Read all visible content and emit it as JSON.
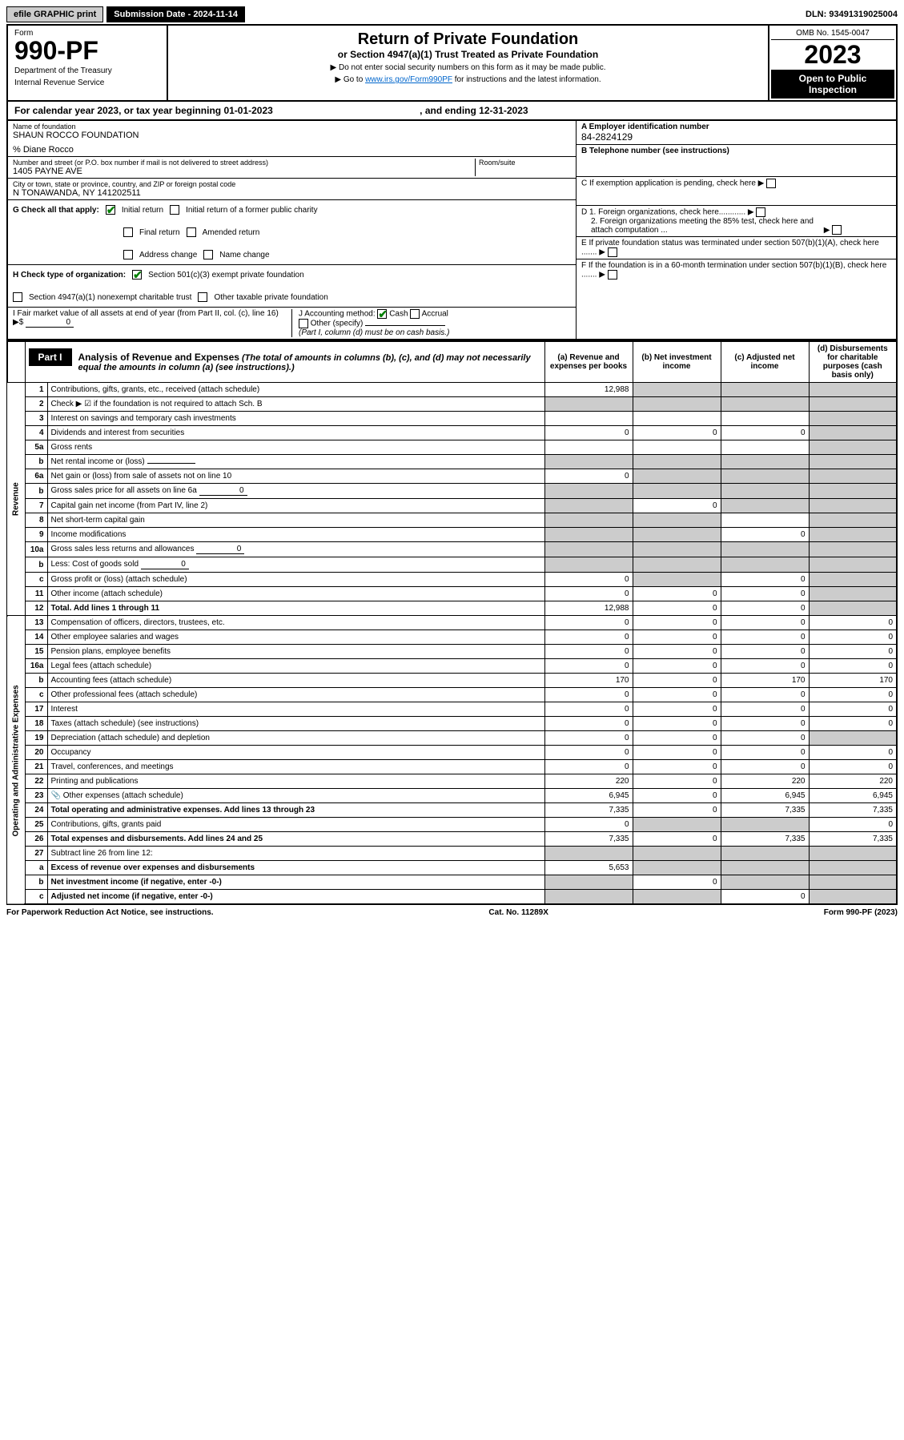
{
  "top": {
    "efile": "efile GRAPHIC print",
    "submission": "Submission Date - 2024-11-14",
    "dln": "DLN: 93491319025004"
  },
  "header": {
    "form_label": "Form",
    "form_no": "990-PF",
    "dept1": "Department of the Treasury",
    "dept2": "Internal Revenue Service",
    "title": "Return of Private Foundation",
    "subtitle": "or Section 4947(a)(1) Trust Treated as Private Foundation",
    "instr1": "▶ Do not enter social security numbers on this form as it may be made public.",
    "instr2_pre": "▶ Go to ",
    "instr2_link": "www.irs.gov/Form990PF",
    "instr2_post": " for instructions and the latest information.",
    "omb": "OMB No. 1545-0047",
    "year": "2023",
    "open": "Open to Public Inspection"
  },
  "cal": {
    "text": "For calendar year 2023, or tax year beginning 01-01-2023",
    "end": ", and ending 12-31-2023"
  },
  "org": {
    "name_lbl": "Name of foundation",
    "name": "SHAUN ROCCO FOUNDATION",
    "care": "% Diane Rocco",
    "addr_lbl": "Number and street (or P.O. box number if mail is not delivered to street address)",
    "addr": "1405 PAYNE AVE",
    "room_lbl": "Room/suite",
    "city_lbl": "City or town, state or province, country, and ZIP or foreign postal code",
    "city": "N TONAWANDA, NY  141202511",
    "ein_lbl": "A Employer identification number",
    "ein": "84-2824129",
    "tel_lbl": "B Telephone number (see instructions)",
    "c_lbl": "C If exemption application is pending, check here",
    "d1": "D 1. Foreign organizations, check here............",
    "d2": "2. Foreign organizations meeting the 85% test, check here and attach computation ...",
    "e_lbl": "E  If private foundation status was terminated under section 507(b)(1)(A), check here .......",
    "f_lbl": "F  If the foundation is in a 60-month termination under section 507(b)(1)(B), check here .......",
    "g_lbl": "G Check all that apply:",
    "g1": "Initial return",
    "g2": "Initial return of a former public charity",
    "g3": "Final return",
    "g4": "Amended return",
    "g5": "Address change",
    "g6": "Name change",
    "h_lbl": "H Check type of organization:",
    "h1": "Section 501(c)(3) exempt private foundation",
    "h2": "Section 4947(a)(1) nonexempt charitable trust",
    "h3": "Other taxable private foundation",
    "i_lbl": "I Fair market value of all assets at end of year (from Part II, col. (c), line 16) ▶$",
    "i_val": "0",
    "j_lbl": "J Accounting method:",
    "j1": "Cash",
    "j2": "Accrual",
    "j3": "Other (specify)",
    "j_note": "(Part I, column (d) must be on cash basis.)"
  },
  "part1": {
    "tab": "Part I",
    "title": "Analysis of Revenue and Expenses",
    "title_note": " (The total of amounts in columns (b), (c), and (d) may not necessarily equal the amounts in column (a) (see instructions).)",
    "col_a": "(a) Revenue and expenses per books",
    "col_b": "(b) Net investment income",
    "col_c": "(c) Adjusted net income",
    "col_d": "(d) Disbursements for charitable purposes (cash basis only)"
  },
  "side": {
    "revenue": "Revenue",
    "expenses": "Operating and Administrative Expenses"
  },
  "rows": [
    {
      "n": "1",
      "d": "Contributions, gifts, grants, etc., received (attach schedule)",
      "a": "12,988",
      "b": "",
      "c": "",
      "dcol": "",
      "grey": [
        "b",
        "c",
        "d"
      ]
    },
    {
      "n": "2",
      "d": "Check ▶ ☑ if the foundation is not required to attach Sch. B",
      "a": "",
      "b": "",
      "c": "",
      "dcol": "",
      "grey": [
        "a",
        "b",
        "c",
        "d"
      ],
      "checked": true
    },
    {
      "n": "3",
      "d": "Interest on savings and temporary cash investments",
      "a": "",
      "b": "",
      "c": "",
      "dcol": "",
      "grey": [
        "d"
      ]
    },
    {
      "n": "4",
      "d": "Dividends and interest from securities",
      "a": "0",
      "b": "0",
      "c": "0",
      "dcol": "",
      "grey": [
        "d"
      ]
    },
    {
      "n": "5a",
      "d": "Gross rents",
      "a": "",
      "b": "",
      "c": "",
      "dcol": "",
      "grey": [
        "d"
      ]
    },
    {
      "n": "b",
      "d": "Net rental income or (loss)",
      "a": "",
      "b": "",
      "c": "",
      "dcol": "",
      "grey": [
        "a",
        "b",
        "c",
        "d"
      ],
      "inline": ""
    },
    {
      "n": "6a",
      "d": "Net gain or (loss) from sale of assets not on line 10",
      "a": "0",
      "b": "",
      "c": "",
      "dcol": "",
      "grey": [
        "b",
        "c",
        "d"
      ]
    },
    {
      "n": "b",
      "d": "Gross sales price for all assets on line 6a",
      "a": "",
      "b": "",
      "c": "",
      "dcol": "",
      "grey": [
        "a",
        "b",
        "c",
        "d"
      ],
      "inline": "0"
    },
    {
      "n": "7",
      "d": "Capital gain net income (from Part IV, line 2)",
      "a": "",
      "b": "0",
      "c": "",
      "dcol": "",
      "grey": [
        "a",
        "c",
        "d"
      ]
    },
    {
      "n": "8",
      "d": "Net short-term capital gain",
      "a": "",
      "b": "",
      "c": "",
      "dcol": "",
      "grey": [
        "a",
        "b",
        "d"
      ]
    },
    {
      "n": "9",
      "d": "Income modifications",
      "a": "",
      "b": "",
      "c": "0",
      "dcol": "",
      "grey": [
        "a",
        "b",
        "d"
      ]
    },
    {
      "n": "10a",
      "d": "Gross sales less returns and allowances",
      "a": "",
      "b": "",
      "c": "",
      "dcol": "",
      "grey": [
        "a",
        "b",
        "c",
        "d"
      ],
      "inline": "0"
    },
    {
      "n": "b",
      "d": "Less: Cost of goods sold",
      "a": "",
      "b": "",
      "c": "",
      "dcol": "",
      "grey": [
        "a",
        "b",
        "c",
        "d"
      ],
      "inline": "0"
    },
    {
      "n": "c",
      "d": "Gross profit or (loss) (attach schedule)",
      "a": "0",
      "b": "",
      "c": "0",
      "dcol": "",
      "grey": [
        "b",
        "d"
      ]
    },
    {
      "n": "11",
      "d": "Other income (attach schedule)",
      "a": "0",
      "b": "0",
      "c": "0",
      "dcol": "",
      "grey": [
        "d"
      ]
    },
    {
      "n": "12",
      "d": "Total. Add lines 1 through 11",
      "a": "12,988",
      "b": "0",
      "c": "0",
      "dcol": "",
      "grey": [
        "d"
      ],
      "bold": true
    }
  ],
  "exp_rows": [
    {
      "n": "13",
      "d": "Compensation of officers, directors, trustees, etc.",
      "a": "0",
      "b": "0",
      "c": "0",
      "dcol": "0"
    },
    {
      "n": "14",
      "d": "Other employee salaries and wages",
      "a": "0",
      "b": "0",
      "c": "0",
      "dcol": "0"
    },
    {
      "n": "15",
      "d": "Pension plans, employee benefits",
      "a": "0",
      "b": "0",
      "c": "0",
      "dcol": "0"
    },
    {
      "n": "16a",
      "d": "Legal fees (attach schedule)",
      "a": "0",
      "b": "0",
      "c": "0",
      "dcol": "0"
    },
    {
      "n": "b",
      "d": "Accounting fees (attach schedule)",
      "a": "170",
      "b": "0",
      "c": "170",
      "dcol": "170"
    },
    {
      "n": "c",
      "d": "Other professional fees (attach schedule)",
      "a": "0",
      "b": "0",
      "c": "0",
      "dcol": "0"
    },
    {
      "n": "17",
      "d": "Interest",
      "a": "0",
      "b": "0",
      "c": "0",
      "dcol": "0"
    },
    {
      "n": "18",
      "d": "Taxes (attach schedule) (see instructions)",
      "a": "0",
      "b": "0",
      "c": "0",
      "dcol": "0"
    },
    {
      "n": "19",
      "d": "Depreciation (attach schedule) and depletion",
      "a": "0",
      "b": "0",
      "c": "0",
      "dcol": "",
      "grey": [
        "d"
      ]
    },
    {
      "n": "20",
      "d": "Occupancy",
      "a": "0",
      "b": "0",
      "c": "0",
      "dcol": "0"
    },
    {
      "n": "21",
      "d": "Travel, conferences, and meetings",
      "a": "0",
      "b": "0",
      "c": "0",
      "dcol": "0"
    },
    {
      "n": "22",
      "d": "Printing and publications",
      "a": "220",
      "b": "0",
      "c": "220",
      "dcol": "220"
    },
    {
      "n": "23",
      "d": "Other expenses (attach schedule)",
      "a": "6,945",
      "b": "0",
      "c": "6,945",
      "dcol": "6,945",
      "icon": true
    },
    {
      "n": "24",
      "d": "Total operating and administrative expenses. Add lines 13 through 23",
      "a": "7,335",
      "b": "0",
      "c": "7,335",
      "dcol": "7,335",
      "bold": true
    },
    {
      "n": "25",
      "d": "Contributions, gifts, grants paid",
      "a": "0",
      "b": "",
      "c": "",
      "dcol": "0",
      "grey": [
        "b",
        "c"
      ]
    },
    {
      "n": "26",
      "d": "Total expenses and disbursements. Add lines 24 and 25",
      "a": "7,335",
      "b": "0",
      "c": "7,335",
      "dcol": "7,335",
      "bold": true
    },
    {
      "n": "27",
      "d": "Subtract line 26 from line 12:",
      "a": "",
      "b": "",
      "c": "",
      "dcol": "",
      "grey": [
        "a",
        "b",
        "c",
        "d"
      ]
    },
    {
      "n": "a",
      "d": "Excess of revenue over expenses and disbursements",
      "a": "5,653",
      "b": "",
      "c": "",
      "dcol": "",
      "grey": [
        "b",
        "c",
        "d"
      ],
      "bold": true
    },
    {
      "n": "b",
      "d": "Net investment income (if negative, enter -0-)",
      "a": "",
      "b": "0",
      "c": "",
      "dcol": "",
      "grey": [
        "a",
        "c",
        "d"
      ],
      "bold": true
    },
    {
      "n": "c",
      "d": "Adjusted net income (if negative, enter -0-)",
      "a": "",
      "b": "",
      "c": "0",
      "dcol": "",
      "grey": [
        "a",
        "b",
        "d"
      ],
      "bold": true
    }
  ],
  "footer": {
    "left": "For Paperwork Reduction Act Notice, see instructions.",
    "center": "Cat. No. 11289X",
    "right": "Form 990-PF (2023)"
  }
}
